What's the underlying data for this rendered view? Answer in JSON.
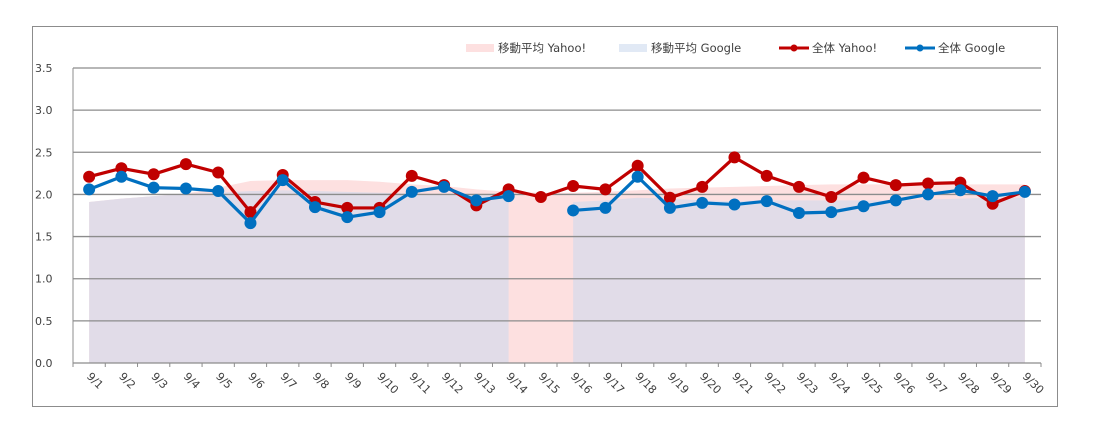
{
  "chart_data": {
    "type": "line",
    "title": "",
    "xlabel": "",
    "ylabel": "",
    "ylim": [
      0,
      3.5
    ],
    "yticks": [
      "0.0",
      "0.5",
      "1.0",
      "1.5",
      "2.0",
      "2.5",
      "3.0",
      "3.5"
    ],
    "grid": true,
    "legend_position": "top-right",
    "categories": [
      "9/1",
      "9/2",
      "9/3",
      "9/4",
      "9/5",
      "9/6",
      "9/7",
      "9/8",
      "9/9",
      "9/10",
      "9/11",
      "9/12",
      "9/13",
      "9/14",
      "9/15",
      "9/16",
      "9/17",
      "9/18",
      "9/19",
      "9/20",
      "9/21",
      "9/22",
      "9/23",
      "9/24",
      "9/25",
      "9/26",
      "9/27",
      "9/28",
      "9/29",
      "9/30"
    ],
    "series": [
      {
        "name": "移動平均 Yahoo!",
        "kind": "area",
        "color": "#FDE0E0",
        "values": [
          1.91,
          1.95,
          1.98,
          2.01,
          2.08,
          2.16,
          2.17,
          2.17,
          2.17,
          2.15,
          2.12,
          2.1,
          2.06,
          2.03,
          2.02,
          2.02,
          2.03,
          2.05,
          2.07,
          2.08,
          2.09,
          2.1,
          2.11,
          2.12,
          2.12,
          2.12,
          2.12,
          2.12,
          2.12,
          2.12
        ]
      },
      {
        "name": "移動平均 Google",
        "kind": "area",
        "color": "#E1DCE8",
        "values": [
          1.91,
          1.95,
          1.98,
          2.01,
          2.02,
          2.04,
          2.05,
          2.04,
          2.03,
          2.02,
          2.01,
          2.0,
          2.0,
          2.0,
          null,
          1.91,
          1.93,
          1.96,
          1.95,
          1.93,
          1.92,
          1.93,
          1.93,
          1.93,
          1.93,
          1.93,
          1.94,
          1.95,
          1.96,
          1.96
        ]
      },
      {
        "name": "全体 Yahoo!",
        "kind": "line",
        "color": "#C00000",
        "values": [
          2.21,
          2.31,
          2.24,
          2.36,
          2.26,
          1.79,
          2.23,
          1.91,
          1.84,
          1.84,
          2.22,
          2.11,
          1.87,
          2.06,
          1.97,
          2.1,
          2.06,
          2.34,
          1.96,
          2.09,
          2.44,
          2.22,
          2.09,
          1.97,
          2.2,
          2.11,
          2.13,
          2.14,
          1.89,
          2.04
        ]
      },
      {
        "name": "全体 Google",
        "kind": "line",
        "color": "#0070C0",
        "values": [
          2.06,
          2.21,
          2.08,
          2.07,
          2.04,
          1.66,
          2.17,
          1.85,
          1.73,
          1.79,
          2.03,
          2.09,
          1.93,
          1.98,
          null,
          1.81,
          1.84,
          2.21,
          1.84,
          1.9,
          1.88,
          1.92,
          1.78,
          1.79,
          1.86,
          1.93,
          2.0,
          2.05,
          1.98,
          2.03
        ]
      }
    ]
  },
  "legend": {
    "items": [
      {
        "label": "移動平均 Yahoo!",
        "swatch": "area",
        "color": "#FDE0E0"
      },
      {
        "label": "移動平均 Google",
        "swatch": "area",
        "color": "#E1E9F5"
      },
      {
        "label": "全体 Yahoo!",
        "swatch": "line",
        "color": "#C00000"
      },
      {
        "label": "全体 Google",
        "swatch": "line",
        "color": "#0070C0"
      }
    ]
  }
}
